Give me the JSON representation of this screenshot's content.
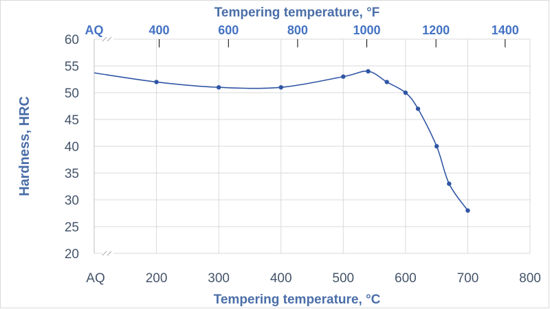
{
  "chart_data": {
    "type": "line",
    "series": [
      {
        "name": "Hardness",
        "x": [
          200,
          300,
          400,
          500,
          540,
          570,
          600,
          620,
          650,
          670,
          700
        ],
        "y": [
          52,
          51,
          51,
          53,
          54,
          52,
          50,
          47,
          40,
          33,
          28
        ],
        "line_start": {
          "x": 100,
          "y": 53.7
        },
        "color": "#2f55a4"
      }
    ],
    "xlabel": "Tempering temperature, °C",
    "x2label": "Tempering temperature, °F",
    "ylabel": "Hardness, HRC",
    "xlim": [
      100,
      800
    ],
    "ylim": [
      20,
      60
    ],
    "x_ticks": [
      {
        "value": 100,
        "label": "AQ"
      },
      {
        "value": 200,
        "label": "200"
      },
      {
        "value": 300,
        "label": "300"
      },
      {
        "value": 400,
        "label": "400"
      },
      {
        "value": 500,
        "label": "500"
      },
      {
        "value": 600,
        "label": "600"
      },
      {
        "value": 700,
        "label": "700"
      },
      {
        "value": 800,
        "label": "800"
      }
    ],
    "x2_ticks": [
      {
        "value": 100,
        "label": "AQ",
        "mark": false
      },
      {
        "value": 204.4,
        "label": "400",
        "mark": true
      },
      {
        "value": 315.6,
        "label": "600",
        "mark": true
      },
      {
        "value": 426.7,
        "label": "800",
        "mark": true
      },
      {
        "value": 537.8,
        "label": "1000",
        "mark": true
      },
      {
        "value": 648.9,
        "label": "1200",
        "mark": true
      },
      {
        "value": 760,
        "label": "1400",
        "mark": true
      }
    ],
    "y_ticks": [
      20,
      25,
      30,
      35,
      40,
      45,
      50,
      55,
      60
    ],
    "grid": true
  },
  "colors": {
    "primary_axis_text": "#44546a",
    "secondary_axis_text": "#4472c4",
    "title_text": "#4a6ea8",
    "series_line": "#2f55a4",
    "gridline": "#d9d9d9"
  }
}
